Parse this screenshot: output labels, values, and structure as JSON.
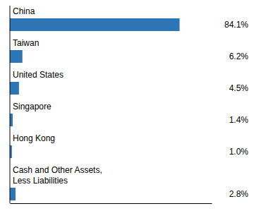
{
  "chart_data": {
    "type": "bar",
    "orientation": "horizontal",
    "categories": [
      "China",
      "Taiwan",
      "United States",
      "Singapore",
      "Hong Kong",
      "Cash and Other Assets,\nLess Liabilities"
    ],
    "values": [
      84.1,
      6.2,
      4.5,
      1.4,
      1.0,
      2.8
    ],
    "value_labels": [
      "84.1%",
      "6.2%",
      "4.5%",
      "1.4%",
      "1.0%",
      "2.8%"
    ],
    "data_labels": true,
    "color": "#2E75B6",
    "xlim": [
      0,
      100
    ],
    "tick_labels": false,
    "grid": false
  }
}
